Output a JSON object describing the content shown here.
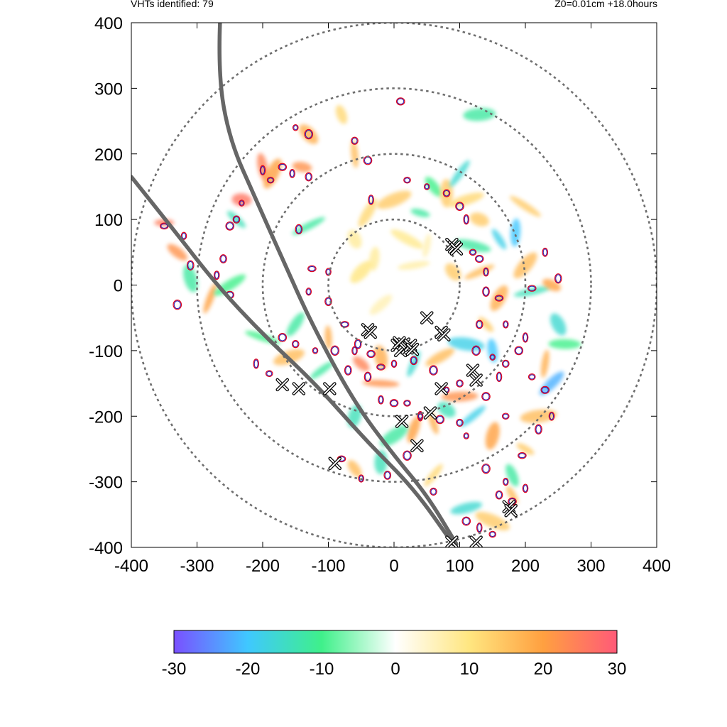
{
  "header": {
    "left": "VHTs identified: 79",
    "right": "Z0=0.01cm  +18.0hours"
  },
  "chart_data": {
    "type": "scatter",
    "title": "",
    "xlabel": "",
    "ylabel": "",
    "xlim": [
      -400,
      400
    ],
    "ylim": [
      -400,
      400
    ],
    "x_ticks": [
      -400,
      -300,
      -200,
      -100,
      0,
      100,
      200,
      300,
      400
    ],
    "y_ticks": [
      -400,
      -300,
      -200,
      -100,
      0,
      100,
      200,
      300,
      400
    ],
    "x_tick_labels": [
      "-400",
      "-300",
      "-200",
      "-100",
      "0",
      "100",
      "200",
      "300",
      "400"
    ],
    "y_tick_labels": [
      "400",
      "300",
      "200",
      "100",
      "0",
      "-100",
      "-200",
      "-300",
      "-400"
    ],
    "grid": false,
    "range_rings_radii": [
      100,
      200,
      300,
      400
    ],
    "colorbar": {
      "min": -30,
      "max": 30,
      "ticks": [
        -30,
        -20,
        -10,
        0,
        10,
        20,
        30
      ],
      "tick_labels": [
        "-30",
        "-20",
        "-10",
        "0",
        "10",
        "20",
        "30"
      ],
      "colors": [
        "#7a50ff",
        "#3fc8ff",
        "#3ff08a",
        "#ffffff",
        "#ffe680",
        "#ffa040",
        "#ff5a78"
      ]
    },
    "vht_markers": [
      [
        88,
        62
      ],
      [
        92,
        58
      ],
      [
        95,
        55
      ],
      [
        50,
        -50
      ],
      [
        -40,
        -68
      ],
      [
        -36,
        -72
      ],
      [
        72,
        -72
      ],
      [
        76,
        -76
      ],
      [
        5,
        -92
      ],
      [
        10,
        -100
      ],
      [
        15,
        -90
      ],
      [
        20,
        -96
      ],
      [
        25,
        -92
      ],
      [
        28,
        -98
      ],
      [
        8,
        -88
      ],
      [
        -170,
        -152
      ],
      [
        -145,
        -158
      ],
      [
        -98,
        -158
      ],
      [
        120,
        -130
      ],
      [
        125,
        -145
      ],
      [
        72,
        -158
      ],
      [
        55,
        -195
      ],
      [
        12,
        -208
      ],
      [
        35,
        -245
      ],
      [
        -90,
        -272
      ],
      [
        175,
        -338
      ],
      [
        178,
        -344
      ],
      [
        88,
        -392
      ],
      [
        125,
        -392
      ]
    ],
    "storm_tracks": [
      [
        [
          -400,
          165
        ],
        [
          -340,
          90
        ],
        [
          -270,
          0
        ],
        [
          -200,
          -75
        ],
        [
          -120,
          -150
        ],
        [
          -40,
          -240
        ],
        [
          30,
          -310
        ],
        [
          90,
          -395
        ]
      ],
      [
        [
          -265,
          400
        ],
        [
          -268,
          320
        ],
        [
          -250,
          220
        ],
        [
          -210,
          130
        ],
        [
          -170,
          40
        ],
        [
          -125,
          -60
        ],
        [
          -60,
          -180
        ],
        [
          0,
          -260
        ],
        [
          50,
          -320
        ],
        [
          95,
          -395
        ]
      ]
    ],
    "features": [
      {
        "x": -350,
        "y": 95,
        "v": 25
      },
      {
        "x": -330,
        "y": 50,
        "v": 22
      },
      {
        "x": -310,
        "y": 10,
        "v": -12
      },
      {
        "x": -280,
        "y": -20,
        "v": 20
      },
      {
        "x": -250,
        "y": 0,
        "v": -10
      },
      {
        "x": -232,
        "y": 130,
        "v": 26
      },
      {
        "x": -240,
        "y": 100,
        "v": -14
      },
      {
        "x": -200,
        "y": 180,
        "v": 24
      },
      {
        "x": -185,
        "y": 170,
        "v": 20
      },
      {
        "x": -130,
        "y": 90,
        "v": -12
      },
      {
        "x": -140,
        "y": 180,
        "v": 22
      },
      {
        "x": -130,
        "y": 230,
        "v": 18
      },
      {
        "x": -60,
        "y": 200,
        "v": 16
      },
      {
        "x": -40,
        "y": 110,
        "v": 12
      },
      {
        "x": 0,
        "y": 130,
        "v": 14
      },
      {
        "x": 40,
        "y": 110,
        "v": -12
      },
      {
        "x": 60,
        "y": 150,
        "v": -10
      },
      {
        "x": 80,
        "y": 140,
        "v": 14
      },
      {
        "x": 100,
        "y": 170,
        "v": -16
      },
      {
        "x": 110,
        "y": 130,
        "v": 12
      },
      {
        "x": 130,
        "y": 100,
        "v": 14
      },
      {
        "x": 160,
        "y": 70,
        "v": -18
      },
      {
        "x": 185,
        "y": 80,
        "v": -20
      },
      {
        "x": 200,
        "y": 30,
        "v": 16
      },
      {
        "x": 210,
        "y": -10,
        "v": -14
      },
      {
        "x": 240,
        "y": 0,
        "v": 20
      },
      {
        "x": 250,
        "y": -60,
        "v": -16
      },
      {
        "x": 230,
        "y": -120,
        "v": 18
      },
      {
        "x": 240,
        "y": -150,
        "v": -22
      },
      {
        "x": 220,
        "y": -200,
        "v": 16
      },
      {
        "x": 200,
        "y": -250,
        "v": 14
      },
      {
        "x": 180,
        "y": -290,
        "v": -12
      },
      {
        "x": 150,
        "y": -230,
        "v": 20
      },
      {
        "x": 120,
        "y": -200,
        "v": -18
      },
      {
        "x": 100,
        "y": -170,
        "v": 22
      },
      {
        "x": 80,
        "y": -190,
        "v": -14
      },
      {
        "x": 60,
        "y": -210,
        "v": 18
      },
      {
        "x": 30,
        "y": -220,
        "v": 20
      },
      {
        "x": 0,
        "y": -230,
        "v": -12
      },
      {
        "x": -20,
        "y": -150,
        "v": 22
      },
      {
        "x": -50,
        "y": -120,
        "v": 24
      },
      {
        "x": -20,
        "y": -110,
        "v": 18
      },
      {
        "x": 30,
        "y": -120,
        "v": -16
      },
      {
        "x": 70,
        "y": -110,
        "v": 16
      },
      {
        "x": 110,
        "y": -90,
        "v": -18
      },
      {
        "x": 140,
        "y": -60,
        "v": 14
      },
      {
        "x": 150,
        "y": -100,
        "v": -20
      },
      {
        "x": 160,
        "y": -20,
        "v": 18
      },
      {
        "x": 130,
        "y": 20,
        "v": 16
      },
      {
        "x": 120,
        "y": 60,
        "v": -12
      },
      {
        "x": 90,
        "y": 20,
        "v": 14
      },
      {
        "x": -100,
        "y": -80,
        "v": 18
      },
      {
        "x": -150,
        "y": -60,
        "v": -12
      },
      {
        "x": -160,
        "y": -110,
        "v": 16
      },
      {
        "x": -200,
        "y": -80,
        "v": -10
      },
      {
        "x": -60,
        "y": -280,
        "v": 16
      },
      {
        "x": -20,
        "y": -270,
        "v": -14
      },
      {
        "x": 60,
        "y": -290,
        "v": 12
      },
      {
        "x": 110,
        "y": -340,
        "v": -16
      },
      {
        "x": 150,
        "y": -360,
        "v": 14
      },
      {
        "x": 180,
        "y": -320,
        "v": 16
      },
      {
        "x": -30,
        "y": 40,
        "v": 8
      },
      {
        "x": -50,
        "y": 20,
        "v": 10
      },
      {
        "x": 30,
        "y": 30,
        "v": 7
      },
      {
        "x": 20,
        "y": 70,
        "v": 9
      },
      {
        "x": -60,
        "y": 70,
        "v": 8
      },
      {
        "x": 50,
        "y": 60,
        "v": 6
      },
      {
        "x": -20,
        "y": -30,
        "v": 6
      },
      {
        "x": 130,
        "y": 260,
        "v": -12
      },
      {
        "x": 200,
        "y": 120,
        "v": 14
      },
      {
        "x": -80,
        "y": 260,
        "v": 12
      },
      {
        "x": -60,
        "y": -200,
        "v": -14
      },
      {
        "x": -110,
        "y": -130,
        "v": -12
      },
      {
        "x": 260,
        "y": -90,
        "v": -10
      }
    ],
    "vht_contours": [
      [
        -232,
        125
      ],
      [
        -240,
        100
      ],
      [
        -250,
        90
      ],
      [
        -200,
        175
      ],
      [
        -188,
        160
      ],
      [
        -170,
        180
      ],
      [
        -155,
        170
      ],
      [
        -145,
        85
      ],
      [
        -125,
        25
      ],
      [
        -130,
        -10
      ],
      [
        -100,
        -25
      ],
      [
        -90,
        -100
      ],
      [
        -120,
        -100
      ],
      [
        -150,
        -90
      ],
      [
        -170,
        -80
      ],
      [
        -210,
        -120
      ],
      [
        -190,
        -135
      ],
      [
        -250,
        -15
      ],
      [
        -270,
        15
      ],
      [
        -310,
        30
      ],
      [
        -350,
        90
      ],
      [
        -320,
        75
      ],
      [
        -260,
        40
      ],
      [
        -330,
        -30
      ],
      [
        50,
        150
      ],
      [
        80,
        140
      ],
      [
        100,
        120
      ],
      [
        110,
        100
      ],
      [
        120,
        50
      ],
      [
        130,
        40
      ],
      [
        140,
        20
      ],
      [
        140,
        -10
      ],
      [
        160,
        -20
      ],
      [
        170,
        -60
      ],
      [
        130,
        -60
      ],
      [
        125,
        -100
      ],
      [
        150,
        -110
      ],
      [
        170,
        -120
      ],
      [
        190,
        -100
      ],
      [
        200,
        -80
      ],
      [
        210,
        -140
      ],
      [
        230,
        -160
      ],
      [
        240,
        -200
      ],
      [
        220,
        -220
      ],
      [
        195,
        -260
      ],
      [
        170,
        -300
      ],
      [
        160,
        -320
      ],
      [
        140,
        -280
      ],
      [
        110,
        -230
      ],
      [
        100,
        -210
      ],
      [
        70,
        -205
      ],
      [
        40,
        -200
      ],
      [
        20,
        -180
      ],
      [
        0,
        -180
      ],
      [
        -20,
        -175
      ],
      [
        -40,
        -140
      ],
      [
        -20,
        -125
      ],
      [
        0,
        -120
      ],
      [
        30,
        -115
      ],
      [
        60,
        -130
      ],
      [
        80,
        -160
      ],
      [
        100,
        -150
      ],
      [
        140,
        -170
      ],
      [
        160,
        -140
      ],
      [
        170,
        -200
      ],
      [
        -35,
        -105
      ],
      [
        -60,
        -100
      ],
      [
        -70,
        -130
      ],
      [
        -80,
        -265
      ],
      [
        -50,
        -295
      ],
      [
        -10,
        -290
      ],
      [
        20,
        -260
      ],
      [
        40,
        -200
      ],
      [
        60,
        -315
      ],
      [
        110,
        -360
      ],
      [
        130,
        -370
      ],
      [
        150,
        -380
      ],
      [
        180,
        -330
      ],
      [
        200,
        -310
      ],
      [
        -55,
        -90
      ],
      [
        -75,
        -60
      ],
      [
        -100,
        20
      ],
      [
        -130,
        165
      ],
      [
        -130,
        230
      ],
      [
        -150,
        240
      ],
      [
        -60,
        220
      ],
      [
        -40,
        190
      ],
      [
        -35,
        130
      ],
      [
        20,
        160
      ],
      [
        10,
        280
      ],
      [
        230,
        50
      ],
      [
        250,
        10
      ],
      [
        210,
        -5
      ]
    ]
  }
}
